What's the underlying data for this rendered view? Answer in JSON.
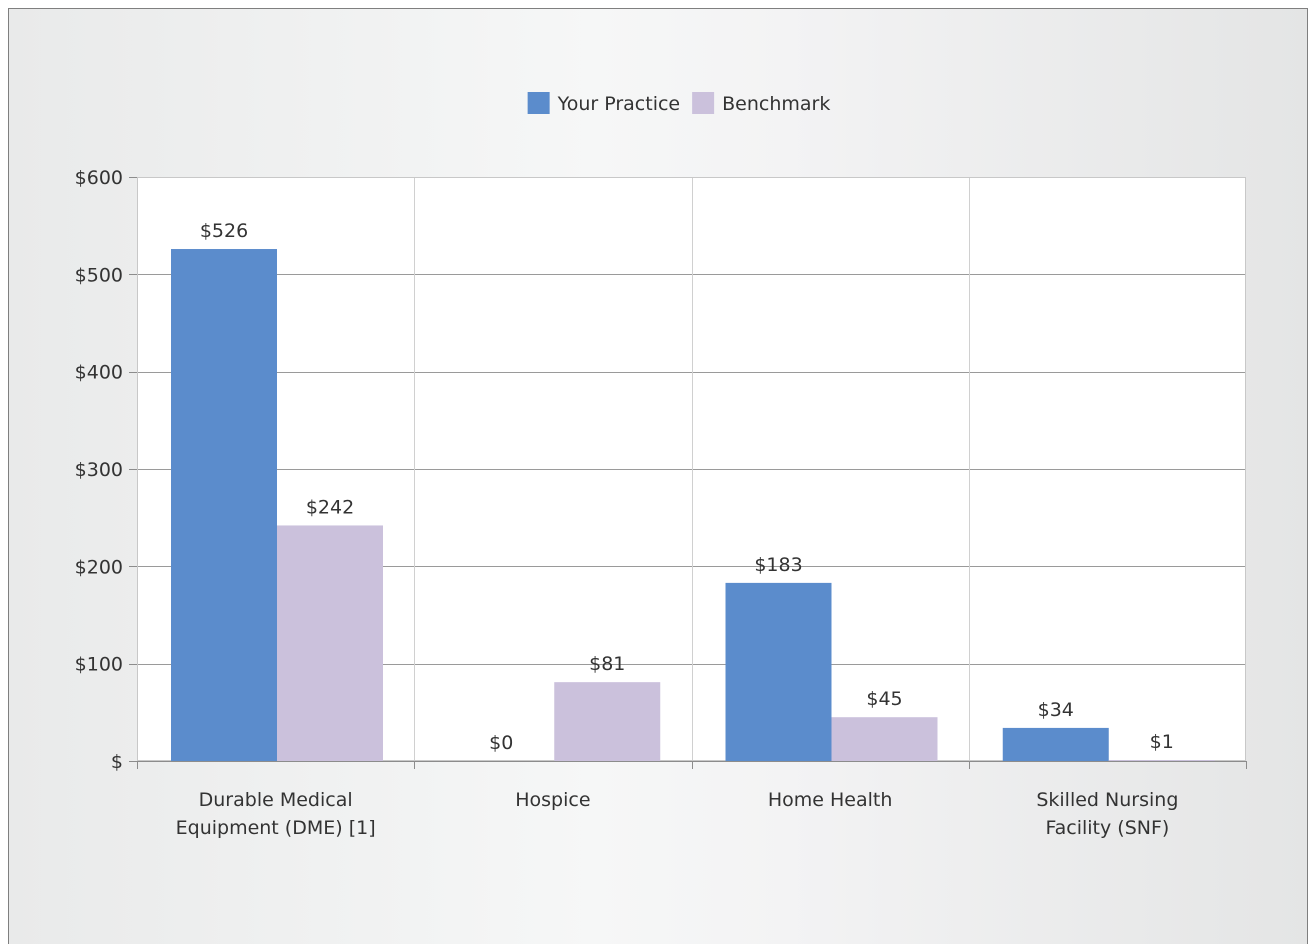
{
  "chart_data": {
    "type": "bar",
    "categories": [
      [
        "Durable Medical",
        "Equipment (DME) [1]"
      ],
      [
        "Hospice"
      ],
      [
        "Home Health"
      ],
      [
        "Skilled Nursing",
        "Facility (SNF)"
      ]
    ],
    "series": [
      {
        "name": "Your Practice",
        "color": "#5b8ccc",
        "values": [
          526,
          0,
          183,
          34
        ],
        "labels": [
          "$526",
          "$0",
          "$183",
          "$34"
        ]
      },
      {
        "name": "Benchmark",
        "color": "#cbc1dc",
        "values": [
          242,
          81,
          45,
          1
        ],
        "labels": [
          "$242",
          "$81",
          "$45",
          "$1"
        ]
      }
    ],
    "ylim": [
      0,
      600
    ],
    "yticks": [
      {
        "value": 0,
        "label": "$"
      },
      {
        "value": 100,
        "label": "$100"
      },
      {
        "value": 200,
        "label": "$200"
      },
      {
        "value": 300,
        "label": "$300"
      },
      {
        "value": 400,
        "label": "$400"
      },
      {
        "value": 500,
        "label": "$500"
      },
      {
        "value": 600,
        "label": "$600"
      }
    ],
    "grid": true,
    "legend_position": "top-center"
  }
}
